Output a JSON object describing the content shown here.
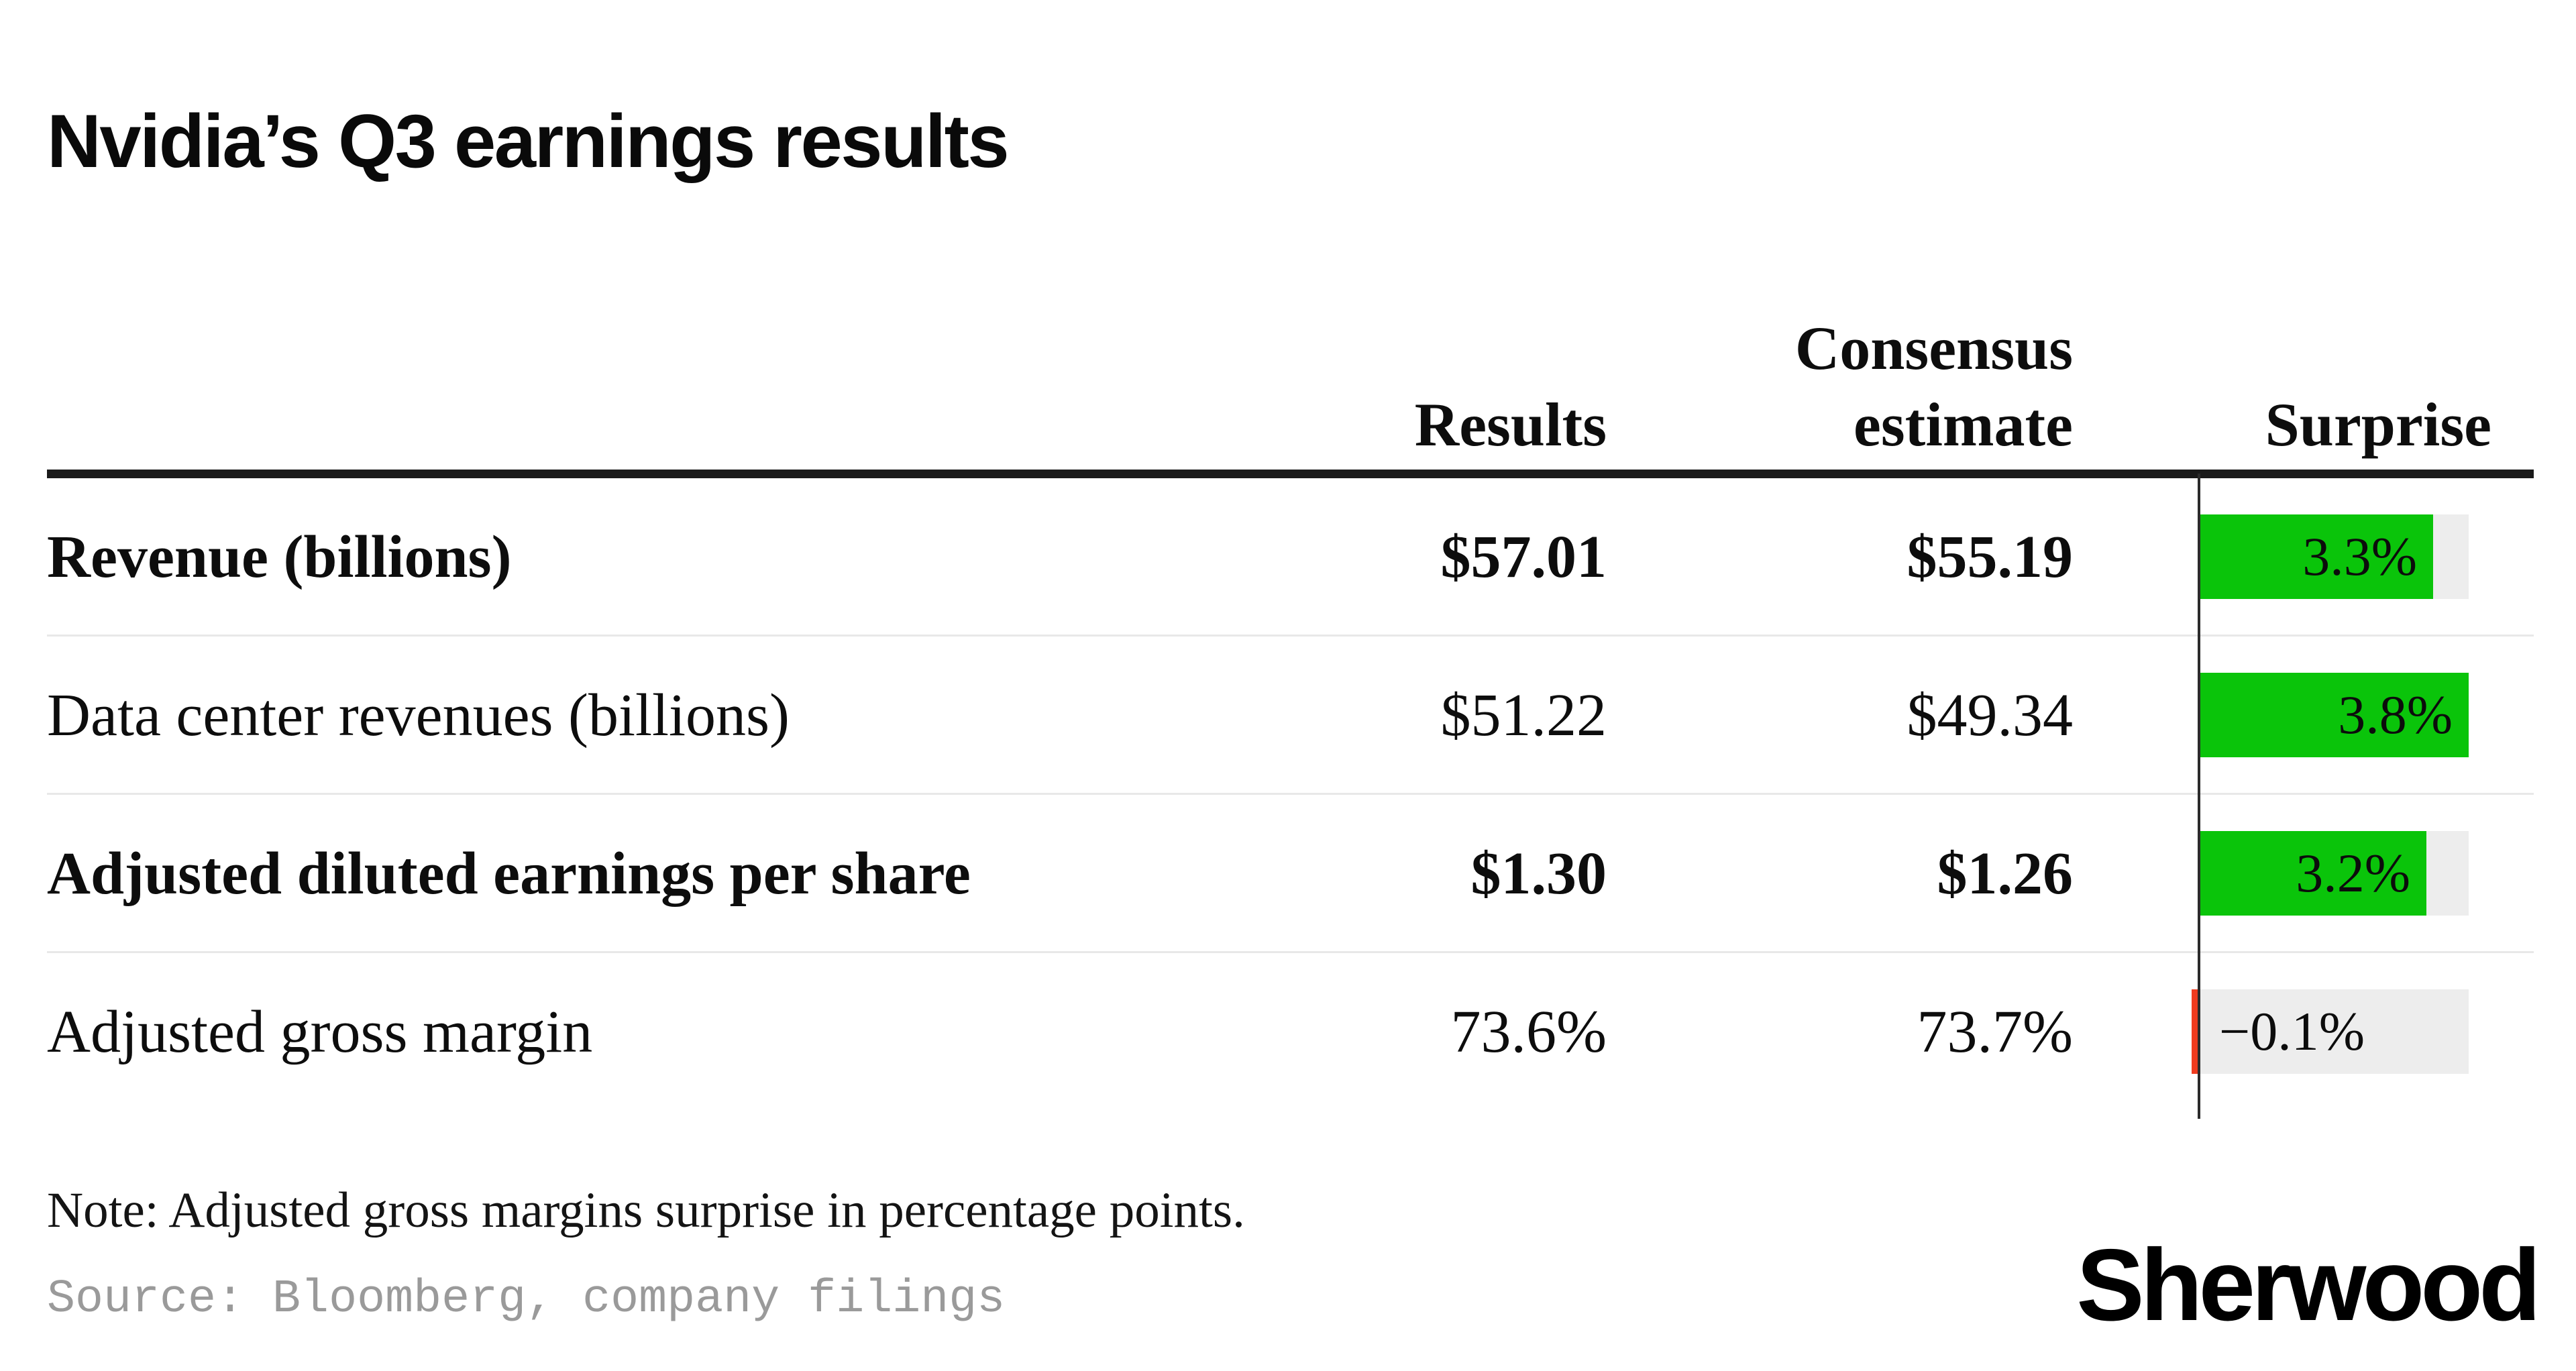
{
  "title": "Nvidia’s Q3 earnings results",
  "table": {
    "header": {
      "results": "Results",
      "consensus": [
        "Consensus",
        "estimate"
      ],
      "surprise": "Surprise"
    },
    "rows": [
      {
        "label": "Revenue (billions)",
        "results": "$57.01",
        "consensus": "$55.19",
        "surprise": "3.3%"
      },
      {
        "label": "Data center revenues (billions)",
        "results": "$51.22",
        "consensus": "$49.34",
        "surprise": "3.8%"
      },
      {
        "label": "Adjusted diluted earnings per share",
        "results": "$1.30",
        "consensus": "$1.26",
        "surprise": "3.2%"
      },
      {
        "label": "Adjusted gross margin",
        "results": "73.6%",
        "consensus": "73.7%",
        "surprise": "−0.1%"
      }
    ]
  },
  "note": "Note: Adjusted gross margins surprise in percentage points.",
  "source": "Source: Bloomberg, company filings",
  "brand": "Sherwood",
  "colors": {
    "positive": "#0AC40A",
    "negative": "#EF3B1F",
    "track": "#EDEDED",
    "separator": "#E8E8E8",
    "rule": "#1A1A1A",
    "axis": "#2B2B2B",
    "source_text": "#9A9A9A"
  },
  "chart_data": {
    "type": "bar",
    "orientation": "horizontal",
    "title": "Nvidia’s Q3 earnings results",
    "categories": [
      "Revenue (billions)",
      "Data center revenues (billions)",
      "Adjusted diluted earnings per share",
      "Adjusted gross margin"
    ],
    "series": [
      {
        "name": "Results",
        "values": [
          57.01,
          51.22,
          1.3,
          73.6
        ],
        "labels": [
          "$57.01",
          "$51.22",
          "$1.30",
          "73.6%"
        ]
      },
      {
        "name": "Consensus estimate",
        "values": [
          55.19,
          49.34,
          1.26,
          73.7
        ],
        "labels": [
          "$55.19",
          "$49.34",
          "$1.26",
          "73.7%"
        ]
      },
      {
        "name": "Surprise",
        "values": [
          3.3,
          3.8,
          3.2,
          -0.1
        ],
        "labels": [
          "3.3%",
          "3.8%",
          "3.2%",
          "−0.1%"
        ],
        "unit": "%"
      }
    ],
    "bar_series": "Surprise",
    "bar_axis_max": 3.8,
    "grid": false,
    "legend": false,
    "note": "Adjusted gross margins surprise in percentage points."
  }
}
